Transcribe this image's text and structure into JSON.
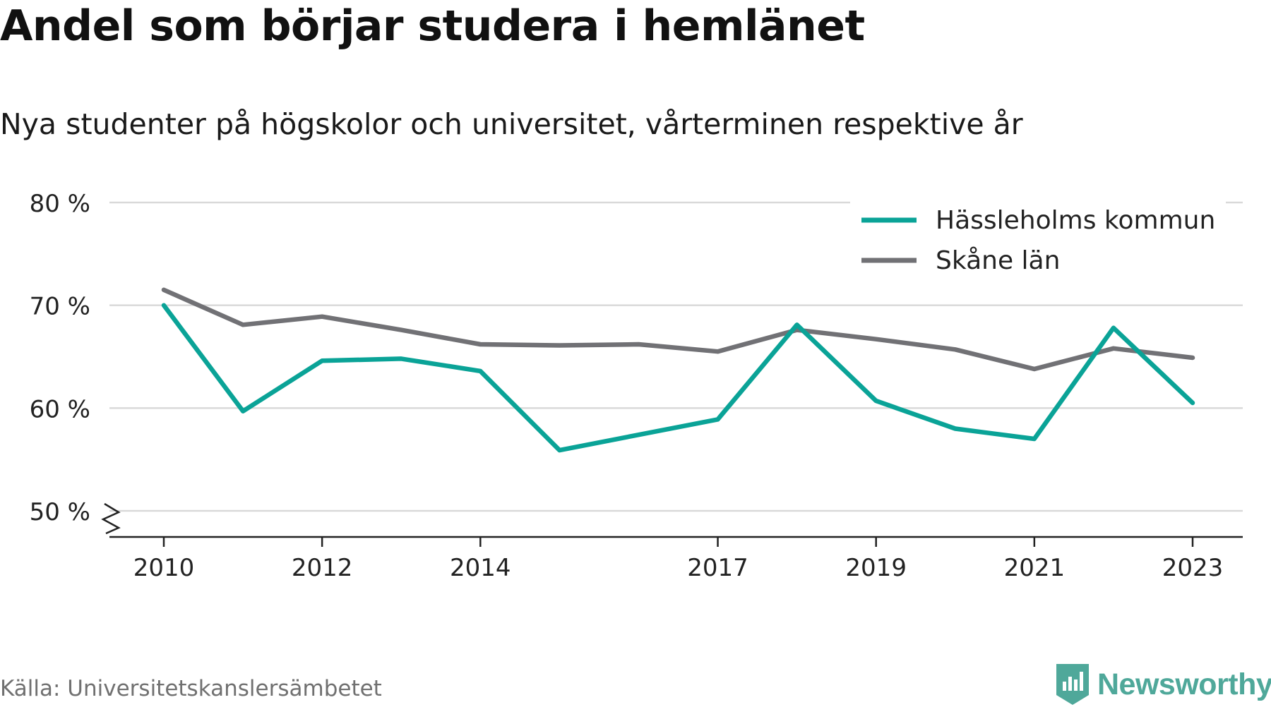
{
  "title": "Andel som börjar studera i hemlänet",
  "subtitle": "Nya studenter på högskolor och universitet, vårterminen respektive år",
  "source": "Källa: Universitetskanslersämbetet",
  "brand": {
    "name": "Newsworthy",
    "icon": "newsworthy-logo-icon",
    "color": "#4fa89a"
  },
  "chart_data": {
    "type": "line",
    "x": [
      2010,
      2011,
      2012,
      2013,
      2014,
      2015,
      2016,
      2017,
      2018,
      2019,
      2020,
      2021,
      2022,
      2023
    ],
    "x_ticks": [
      2010,
      2012,
      2014,
      2017,
      2019,
      2021,
      2023
    ],
    "x_tick_labels": [
      "2010",
      "2012",
      "2014",
      "2017",
      "2019",
      "2021",
      "2023"
    ],
    "y_ticks": [
      50,
      60,
      70,
      80
    ],
    "y_tick_labels": [
      "50 %",
      "60 %",
      "70 %",
      "80 %"
    ],
    "ylim": [
      50,
      80
    ],
    "y_axis_break": true,
    "grid": true,
    "legend_position": "top-right",
    "series": [
      {
        "name": "Hässleholms kommun",
        "color": "#0aa397",
        "values": [
          70.0,
          59.7,
          64.6,
          64.8,
          63.6,
          55.9,
          57.4,
          58.9,
          68.1,
          60.7,
          58.0,
          57.0,
          67.8,
          60.5
        ]
      },
      {
        "name": "Skåne län",
        "color": "#717175",
        "values": [
          71.5,
          68.1,
          68.9,
          67.6,
          66.2,
          66.1,
          66.2,
          65.5,
          67.6,
          66.7,
          65.7,
          63.8,
          65.8,
          64.9
        ]
      }
    ]
  }
}
